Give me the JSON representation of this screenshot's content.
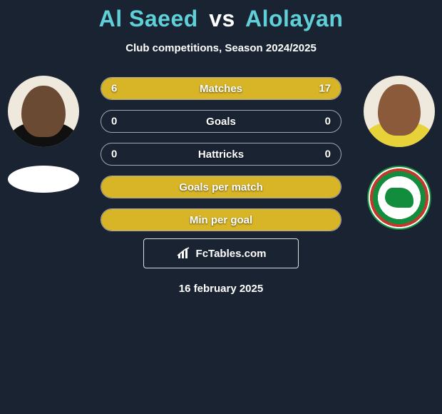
{
  "title": {
    "player1": "Al Saeed",
    "vs": "vs",
    "player2": "Alolayan"
  },
  "subtitle": "Club competitions, Season 2024/2025",
  "date_line": "16 february 2025",
  "brand_text": "FcTables.com",
  "colors": {
    "background": "#1a2332",
    "player1_bar": "#d8b427",
    "player2_bar": "#d8b427",
    "accent_text": "#5fcfd8",
    "row_border": "rgba(255,255,255,0.6)"
  },
  "stats": [
    {
      "label": "Matches",
      "left_value": "6",
      "right_value": "17",
      "left_pct": 26,
      "right_pct": 74,
      "left_color": "#d8b427",
      "right_color": "#d8b427"
    },
    {
      "label": "Goals",
      "left_value": "0",
      "right_value": "0",
      "left_pct": 0,
      "right_pct": 0,
      "left_color": "#d8b427",
      "right_color": "#d8b427"
    },
    {
      "label": "Hattricks",
      "left_value": "0",
      "right_value": "0",
      "left_pct": 0,
      "right_pct": 0,
      "left_color": "#d8b427",
      "right_color": "#d8b427"
    },
    {
      "label": "Goals per match",
      "left_value": "",
      "right_value": "",
      "left_pct": 100,
      "right_pct": 0,
      "left_color": "#d8b427",
      "right_color": "#d8b427"
    },
    {
      "label": "Min per goal",
      "left_value": "",
      "right_value": "",
      "left_pct": 100,
      "right_pct": 0,
      "left_color": "#d8b427",
      "right_color": "#d8b427"
    }
  ]
}
